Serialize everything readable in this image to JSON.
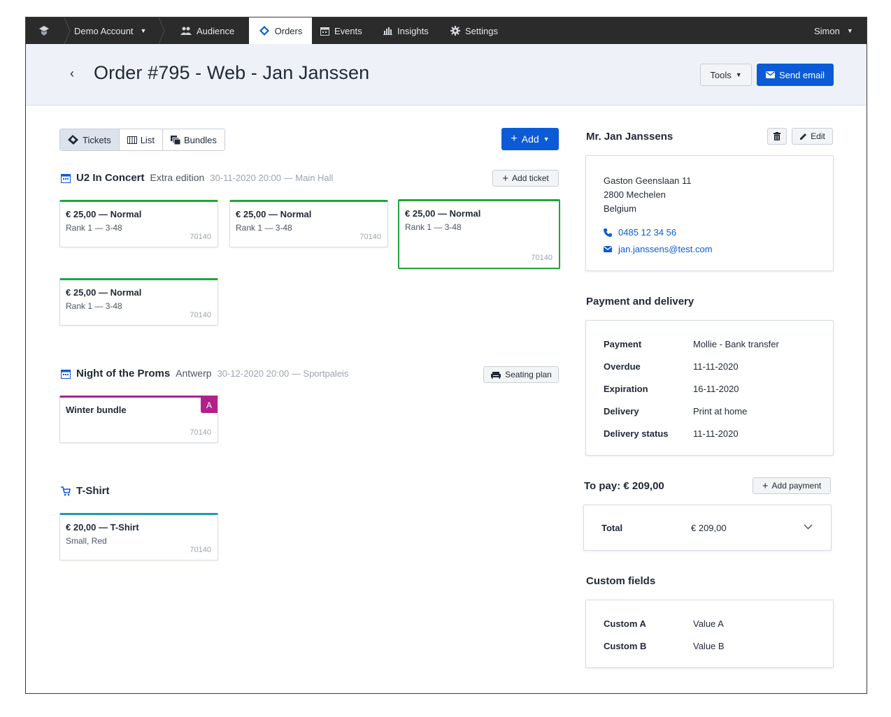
{
  "nav": {
    "account": "Demo Account",
    "items": [
      {
        "label": "Audience"
      },
      {
        "label": "Orders"
      },
      {
        "label": "Events"
      },
      {
        "label": "Insights"
      },
      {
        "label": "Settings"
      }
    ],
    "user": "Simon"
  },
  "header": {
    "title": "Order #795 - Web - Jan Janssen",
    "tools_label": "Tools",
    "send_email_label": "Send email"
  },
  "view_tabs": [
    {
      "label": "Tickets",
      "active": true
    },
    {
      "label": "List"
    },
    {
      "label": "Bundles"
    }
  ],
  "add_label": "Add",
  "events": [
    {
      "name": "U2 In Concert",
      "edition": "Extra edition",
      "meta": "30-11-2020 20:00 — Main Hall",
      "action": "Add ticket",
      "tickets": [
        {
          "title": "€ 25,00 — Normal",
          "seat": "Rank 1 — 3-48",
          "code": "70140"
        },
        {
          "title": "€ 25,00 — Normal",
          "seat": "Rank 1 — 3-48",
          "code": "70140"
        },
        {
          "title": "€ 25,00 — Normal",
          "seat": "Rank 1 — 3-48",
          "code": "70140"
        },
        {
          "title": "€ 25,00 — Normal",
          "seat": "Rank 1 — 3-48",
          "code": "70140"
        }
      ]
    },
    {
      "name": "Night of the Proms",
      "edition": "Antwerp",
      "meta": "30-12-2020 20:00 — Sportpaleis",
      "action": "Seating plan",
      "tickets": [
        {
          "title": "Winter bundle",
          "badge": "A",
          "code": "70140"
        }
      ]
    }
  ],
  "product": {
    "name": "T-Shirt",
    "items": [
      {
        "title": "€ 20,00 — T-Shirt",
        "variant": "Small, Red",
        "code": "70140"
      }
    ]
  },
  "customer": {
    "name": "Mr. Jan Janssens",
    "edit_label": "Edit",
    "address": [
      "Gaston Geenslaan 11",
      "2800 Mechelen",
      "Belgium"
    ],
    "phone": "0485 12 34 56",
    "email": "jan.janssens@test.com"
  },
  "payment_delivery": {
    "title": "Payment and delivery",
    "rows": [
      {
        "key": "Payment",
        "value": "Mollie - Bank transfer"
      },
      {
        "key": "Overdue",
        "value": "11-11-2020"
      },
      {
        "key": "Expiration",
        "value": "16-11-2020"
      },
      {
        "key": "Delivery",
        "value": "Print at home"
      },
      {
        "key": "Delivery status",
        "value": "11-11-2020"
      }
    ]
  },
  "to_pay": {
    "label": "To pay: € 209,00",
    "add_payment_label": "Add payment",
    "total_key": "Total",
    "total_value": "€ 209,00"
  },
  "custom_fields": {
    "title": "Custom fields",
    "rows": [
      {
        "key": "Custom A",
        "value": "Value A"
      },
      {
        "key": "Custom B",
        "value": "Value B"
      }
    ]
  },
  "colors": {
    "primary": "#0b5bd7",
    "ticket_border": "#22a53a",
    "bundle_border": "#b0228a",
    "product_border": "#1f9bb0"
  }
}
